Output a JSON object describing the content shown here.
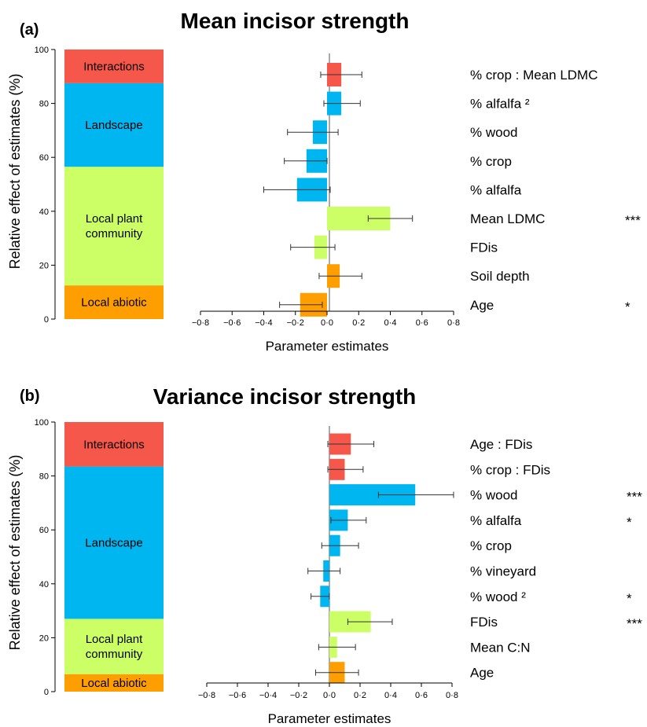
{
  "chart_data": [
    {
      "type": "bar",
      "orientation": "horizontal",
      "panel": "(a)",
      "title": "Mean incisor strength",
      "xlabel": "Parameter estimates",
      "ylabel": "Relative effect of estimates (%)",
      "xlim": [
        -0.8,
        0.8
      ],
      "xticks": [
        "−0·8",
        "−0·6",
        "−0·4",
        "−0·2",
        "0·0",
        "0·2",
        "0·4",
        "0·6",
        "0·8"
      ],
      "ylim": [
        0,
        100
      ],
      "yticks": [
        "0",
        "20",
        "40",
        "60",
        "80",
        "100"
      ],
      "groups": [
        {
          "label": "Local abiotic",
          "from": 0,
          "to": 12.5,
          "color": "#ff9e00"
        },
        {
          "label": "Local plant community",
          "from": 12.5,
          "to": 56.5,
          "color": "#ccff66"
        },
        {
          "label": "Landscape",
          "from": 56.5,
          "to": 87.5,
          "color": "#00b6f0"
        },
        {
          "label": "Interactions",
          "from": 87.5,
          "to": 100,
          "color": "#f5574a"
        }
      ],
      "terms": [
        {
          "label": "% crop : Mean LDMC",
          "value": 0.09,
          "ci": [
            -0.04,
            0.22
          ],
          "group": "Interactions",
          "sig": ""
        },
        {
          "label": "% alfalfa ²",
          "value": 0.09,
          "ci": [
            -0.02,
            0.21
          ],
          "group": "Landscape",
          "sig": ""
        },
        {
          "label": "% wood",
          "value": -0.09,
          "ci": [
            -0.25,
            0.07
          ],
          "group": "Landscape",
          "sig": ""
        },
        {
          "label": "% crop",
          "value": -0.13,
          "ci": [
            -0.27,
            0.0
          ],
          "group": "Landscape",
          "sig": ""
        },
        {
          "label": "% alfalfa",
          "value": -0.19,
          "ci": [
            -0.4,
            0.02
          ],
          "group": "Landscape",
          "sig": ""
        },
        {
          "label": "Mean LDMC",
          "value": 0.4,
          "ci": [
            0.26,
            0.54
          ],
          "group": "Local plant community",
          "sig": "***"
        },
        {
          "label": "FDis",
          "value": -0.08,
          "ci": [
            -0.23,
            0.05
          ],
          "group": "Local plant community",
          "sig": ""
        },
        {
          "label": "Soil depth",
          "value": 0.08,
          "ci": [
            -0.05,
            0.22
          ],
          "group": "Local abiotic",
          "sig": ""
        },
        {
          "label": "Age",
          "value": -0.17,
          "ci": [
            -0.3,
            -0.03
          ],
          "group": "Local abiotic",
          "sig": "*"
        }
      ]
    },
    {
      "type": "bar",
      "orientation": "horizontal",
      "panel": "(b)",
      "title": "Variance incisor strength",
      "xlabel": "Parameter estimates",
      "ylabel": "Relative effect of estimates (%)",
      "xlim": [
        -0.8,
        0.8
      ],
      "xticks": [
        "−0·8",
        "−0·6",
        "−0·4",
        "−0·2",
        "0·0",
        "0·2",
        "0·4",
        "0·6",
        "0·8"
      ],
      "ylim": [
        0,
        100
      ],
      "yticks": [
        "0",
        "20",
        "40",
        "60",
        "80",
        "100"
      ],
      "groups": [
        {
          "label": "Local abiotic",
          "from": 0,
          "to": 6.5,
          "color": "#ff9e00"
        },
        {
          "label": "Local plant community",
          "from": 6.5,
          "to": 27,
          "color": "#ccff66"
        },
        {
          "label": "Landscape",
          "from": 27,
          "to": 83.5,
          "color": "#00b6f0"
        },
        {
          "label": "Interactions",
          "from": 83.5,
          "to": 100,
          "color": "#f5574a"
        }
      ],
      "terms": [
        {
          "label": "Age : FDis",
          "value": 0.14,
          "ci": [
            -0.01,
            0.29
          ],
          "group": "Interactions",
          "sig": ""
        },
        {
          "label": "% crop : FDis",
          "value": 0.1,
          "ci": [
            -0.01,
            0.22
          ],
          "group": "Interactions",
          "sig": ""
        },
        {
          "label": "% wood",
          "value": 0.56,
          "ci": [
            0.32,
            0.81
          ],
          "group": "Landscape",
          "sig": "***"
        },
        {
          "label": "% alfalfa",
          "value": 0.12,
          "ci": [
            0.01,
            0.24
          ],
          "group": "Landscape",
          "sig": "*"
        },
        {
          "label": "% crop",
          "value": 0.07,
          "ci": [
            -0.05,
            0.19
          ],
          "group": "Landscape",
          "sig": ""
        },
        {
          "label": "% vineyard",
          "value": -0.04,
          "ci": [
            -0.14,
            0.07
          ],
          "group": "Landscape",
          "sig": ""
        },
        {
          "label": "% wood ²",
          "value": -0.06,
          "ci": [
            -0.12,
            0.0
          ],
          "group": "Landscape",
          "sig": "*"
        },
        {
          "label": "FDis",
          "value": 0.27,
          "ci": [
            0.12,
            0.41
          ],
          "group": "Local plant community",
          "sig": "***"
        },
        {
          "label": "Mean C:N",
          "value": 0.05,
          "ci": [
            -0.07,
            0.17
          ],
          "group": "Local plant community",
          "sig": ""
        },
        {
          "label": "Age",
          "value": 0.1,
          "ci": [
            -0.09,
            0.19
          ],
          "group": "Local abiotic",
          "sig": ""
        }
      ]
    }
  ]
}
